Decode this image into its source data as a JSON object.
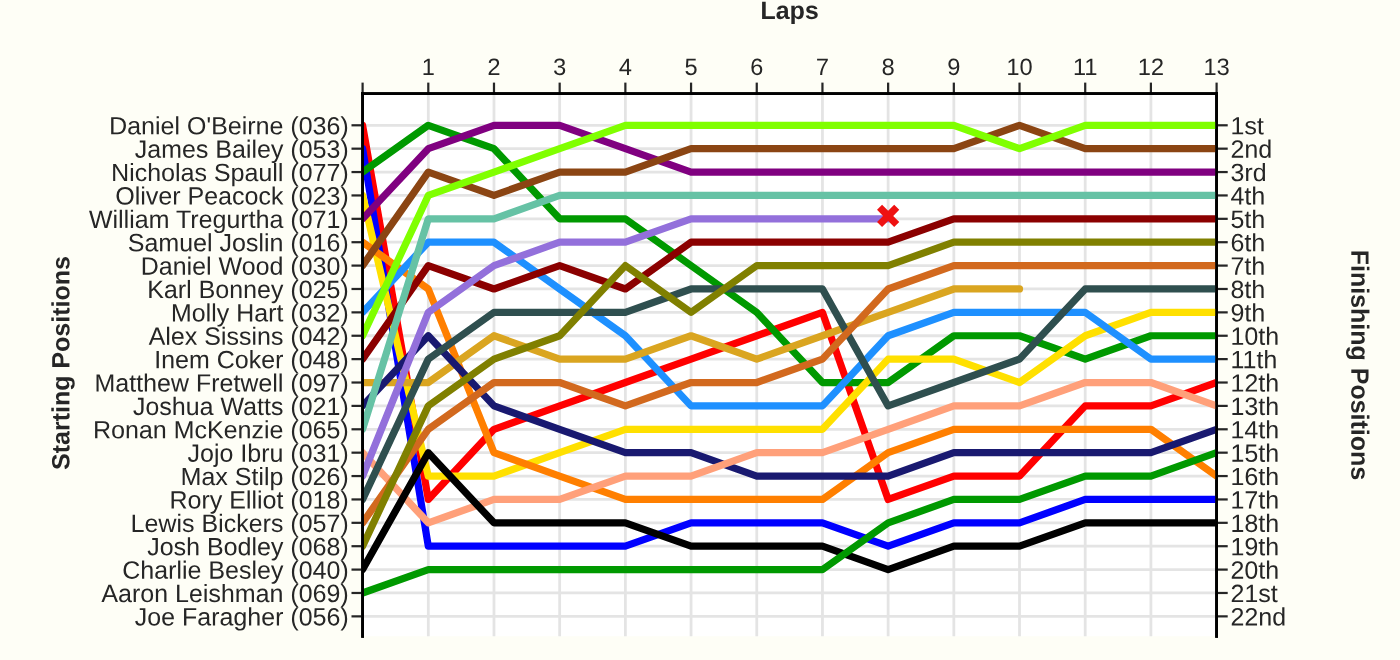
{
  "chart_data": {
    "type": "line",
    "xlabel": "Laps",
    "ylabel": "Finishing Positions",
    "x": [
      0,
      1,
      2,
      3,
      4,
      5,
      6,
      7,
      8,
      9,
      10,
      11,
      12,
      13
    ],
    "xlim": [
      0,
      13
    ],
    "xticks": [
      {
        "value": 0,
        "label": null
      },
      1,
      2,
      3,
      4,
      5,
      6,
      7,
      8,
      9,
      10,
      11,
      12,
      13
    ],
    "y_categories": [
      "Daniel O'Beirne (036)",
      "James Bailey (053)",
      "Nicholas Spaull (077)",
      "Oliver Peacock (023)",
      "William Tregurtha (071)",
      "Samuel Joslin (016)",
      "Daniel Wood (030)",
      "Karl Bonney (025)",
      "Molly Hart (032)",
      "Alex Sissins (042)",
      "Inem Coker (048)",
      "Matthew Fretwell (097)",
      "Joshua Watts (021)",
      "Ronan McKenzie (065)",
      "Jojo Ibru (031)",
      "Max Stilp (026)",
      "Rory Elliot (018)",
      "Lewis Bickers (057)",
      "Josh Bodley (068)",
      "Charlie Besley (040)",
      "Aaron Leishman (069)",
      "Joe Faragher (056)"
    ],
    "ylim": [
      22.85,
      -0.35
    ],
    "yticks": [
      {
        "value": 1,
        "label": "1st"
      },
      {
        "value": 2,
        "label": "2nd"
      },
      {
        "value": 3,
        "label": "3rd"
      },
      {
        "value": 4,
        "label": "4th"
      },
      {
        "value": 5,
        "label": "5th"
      },
      {
        "value": 6,
        "label": "6th"
      },
      {
        "value": 7,
        "label": "7th"
      },
      {
        "value": 8,
        "label": "8th"
      },
      {
        "value": 9,
        "label": "9th"
      },
      {
        "value": 10,
        "label": "10th"
      },
      {
        "value": 11,
        "label": "11th"
      },
      {
        "value": 12,
        "label": "12th"
      },
      {
        "value": 13,
        "label": "13th"
      },
      {
        "value": 14,
        "label": "14th"
      },
      {
        "value": 15,
        "label": "15th"
      },
      {
        "value": 16,
        "label": "16th"
      },
      {
        "value": 17,
        "label": "17th"
      },
      {
        "value": 18,
        "label": "18th"
      },
      {
        "value": 19,
        "label": "19th"
      },
      {
        "value": 20,
        "label": "20th"
      },
      {
        "value": 21,
        "label": "21st"
      },
      {
        "value": 22,
        "label": "22nd"
      }
    ],
    "grid": true,
    "annotations": [
      "Starting Positions",
      {
        "text": "✖",
        "x": 8,
        "y": 5
      }
    ],
    "line_style": "solid",
    "series": [
      {
        "color": "#ff0000",
        "values": [
          1,
          17,
          14,
          13,
          12,
          11,
          10,
          9,
          17,
          16,
          16,
          13,
          13,
          12
        ]
      },
      {
        "color": "#0000ff",
        "values": [
          2,
          19,
          19,
          19,
          19,
          18,
          18,
          18,
          19,
          18,
          18,
          17,
          17,
          17
        ]
      },
      {
        "color": "#009900",
        "values": [
          3,
          1,
          2,
          5,
          5,
          7,
          9,
          12,
          12,
          10,
          10,
          11,
          10,
          10
        ]
      },
      {
        "color": "#ffe000",
        "values": [
          4,
          16,
          16,
          15,
          14,
          14,
          14,
          14,
          11,
          11,
          12,
          10,
          9,
          9
        ]
      },
      {
        "color": "#800080",
        "values": [
          5,
          2,
          1,
          1,
          2,
          3,
          3,
          3,
          3,
          3,
          3,
          3,
          3,
          3
        ]
      },
      {
        "color": "#ff7f00",
        "values": [
          6,
          8,
          15,
          16,
          17,
          17,
          17,
          17,
          15,
          14,
          14,
          14,
          14,
          16
        ]
      },
      {
        "color": "#8b4513",
        "values": [
          7,
          3,
          4,
          3,
          3,
          2,
          2,
          2,
          2,
          2,
          1,
          2,
          2,
          2
        ]
      },
      {
        "color": "#1e90ff",
        "values": [
          9,
          6,
          6,
          8,
          10,
          13,
          13,
          13,
          10,
          9,
          9,
          9,
          11,
          11
        ]
      },
      {
        "color": "#80ff00",
        "values": [
          10,
          4,
          3,
          2,
          1,
          1,
          1,
          1,
          1,
          1,
          2,
          1,
          1,
          1
        ]
      },
      {
        "color": "#8b0000",
        "values": [
          11,
          7,
          8,
          7,
          8,
          6,
          6,
          6,
          6,
          5,
          5,
          5,
          5,
          5
        ]
      },
      {
        "color": "#daa520",
        "values": [
          12,
          12,
          10,
          11,
          11,
          10,
          11,
          10,
          9,
          8,
          8,
          null,
          null,
          null
        ]
      },
      {
        "color": "#191970",
        "values": [
          13,
          10,
          13,
          14,
          15,
          15,
          16,
          16,
          16,
          15,
          15,
          15,
          15,
          14
        ]
      },
      {
        "color": "#66c2a5",
        "values": [
          14,
          5,
          5,
          4,
          4,
          4,
          4,
          4,
          4,
          4,
          4,
          4,
          4,
          4
        ]
      },
      {
        "color": "#ffa07a",
        "values": [
          15,
          18,
          17,
          17,
          16,
          16,
          15,
          15,
          14,
          13,
          13,
          12,
          12,
          13
        ]
      },
      {
        "color": "#9370db",
        "values": [
          16,
          9,
          7,
          6,
          6,
          5,
          5,
          5,
          5,
          null,
          null,
          null,
          null,
          null
        ]
      },
      {
        "color": "#2f4f4f",
        "values": [
          17,
          11,
          9,
          9,
          9,
          8,
          8,
          8,
          13,
          12,
          11,
          8,
          8,
          8
        ]
      },
      {
        "color": "#d2691e",
        "values": [
          18,
          14,
          12,
          12,
          13,
          12,
          12,
          11,
          8,
          7,
          7,
          7,
          7,
          7
        ]
      },
      {
        "color": "#808000",
        "values": [
          19,
          13,
          11,
          10,
          7,
          9,
          7,
          7,
          7,
          6,
          6,
          6,
          6,
          6
        ]
      },
      {
        "color": "#000000",
        "values": [
          20,
          15,
          18,
          18,
          18,
          19,
          19,
          19,
          20,
          19,
          19,
          18,
          18,
          18
        ]
      },
      {
        "color": "#009900",
        "values": [
          21,
          20,
          20,
          20,
          20,
          20,
          20,
          20,
          18,
          17,
          17,
          16,
          16,
          15
        ]
      }
    ]
  }
}
